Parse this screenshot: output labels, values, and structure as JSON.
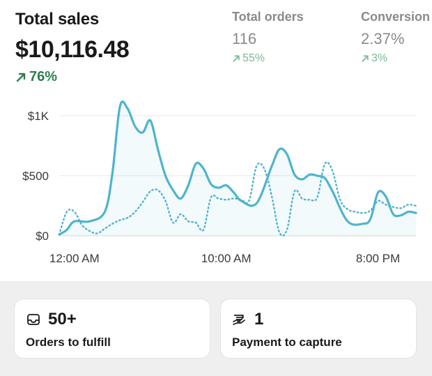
{
  "metrics": {
    "total_sales": {
      "title": "Total sales",
      "value": "$10,116.48",
      "change": "76%"
    },
    "total_orders": {
      "title": "Total orders",
      "value": "116",
      "change": "55%"
    },
    "conversion": {
      "title": "Conversion",
      "value": "2.37%",
      "change": "3%"
    }
  },
  "colors": {
    "accent": "#4fb3cf",
    "positive": "#2e7d4f",
    "positive_muted": "#7bb894"
  },
  "chart_data": {
    "type": "line",
    "ylim": [
      0,
      1150
    ],
    "y_ticks": [
      "$0",
      "$500",
      "$1K"
    ],
    "y_tick_values": [
      0,
      500,
      1000
    ],
    "x_ticks": [
      "12:00 AM",
      "10:00 AM",
      "8:00 PM"
    ],
    "x_tick_positions": [
      1,
      11,
      21
    ],
    "series": [
      {
        "style": "solid",
        "x": [
          0,
          0.5,
          1,
          2,
          3,
          3.5,
          4,
          4.5,
          5,
          5.5,
          6,
          6.5,
          7,
          7.5,
          8,
          8.5,
          9,
          9.5,
          10,
          10.5,
          11,
          11.5,
          12,
          13,
          14,
          14.5,
          15,
          15.5,
          16,
          16.5,
          17,
          17.5,
          18,
          19,
          20,
          20.5,
          21,
          21.5,
          22,
          22.5,
          23,
          23.5
        ],
        "y": [
          10,
          50,
          120,
          120,
          200,
          520,
          1075,
          1060,
          910,
          860,
          960,
          720,
          500,
          380,
          310,
          420,
          600,
          560,
          430,
          400,
          420,
          360,
          290,
          270,
          580,
          720,
          680,
          510,
          470,
          510,
          500,
          480,
          370,
          120,
          100,
          140,
          360,
          330,
          180,
          170,
          200,
          190
        ]
      },
      {
        "style": "dotted",
        "x": [
          0,
          0.5,
          1,
          1.5,
          2,
          2.5,
          3,
          3.5,
          4,
          4.5,
          5,
          5.5,
          6,
          6.5,
          7,
          7.5,
          8,
          8.5,
          9,
          9.5,
          10,
          10.5,
          11,
          11.5,
          12,
          12.5,
          13,
          13.5,
          14,
          14.5,
          15,
          15.5,
          16,
          16.5,
          17,
          17.5,
          18,
          18.5,
          19,
          19.5,
          20,
          20.5,
          21,
          21.5,
          22,
          22.5,
          23,
          23.5
        ],
        "y": [
          10,
          200,
          200,
          90,
          40,
          20,
          60,
          100,
          130,
          150,
          200,
          280,
          370,
          380,
          290,
          110,
          180,
          120,
          110,
          50,
          320,
          310,
          300,
          310,
          300,
          290,
          580,
          560,
          330,
          30,
          50,
          370,
          310,
          300,
          320,
          600,
          540,
          300,
          220,
          200,
          190,
          210,
          290,
          260,
          240,
          230,
          260,
          250
        ]
      }
    ]
  },
  "cards": {
    "fulfill": {
      "icon": "inbox-icon",
      "count": "50+",
      "label": "Orders to fulfill"
    },
    "payment": {
      "icon": "payment-hand-icon",
      "count": "1",
      "label": "Payment to capture"
    }
  }
}
